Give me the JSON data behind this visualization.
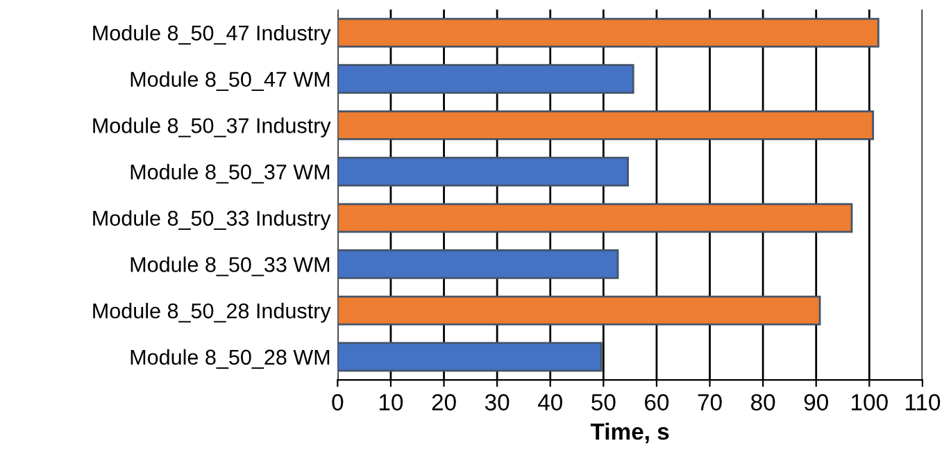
{
  "chart_data": {
    "type": "bar",
    "orientation": "horizontal",
    "xlabel": "Time, s",
    "categories": [
      "Module 8_50_47 Industry",
      "Module 8_50_47 WM",
      "Module 8_50_37 Industry",
      "Module 8_50_37 WM",
      "Module 8_50_33 Industry",
      "Module 8_50_33 WM",
      "Module 8_50_28 Industry",
      "Module 8_50_28 WM"
    ],
    "values": [
      101.7,
      55.6,
      100.7,
      54.6,
      96.7,
      52.7,
      90.7,
      49.6
    ],
    "colors": [
      "#ed7d31",
      "#4472c4",
      "#ed7d31",
      "#4472c4",
      "#ed7d31",
      "#4472c4",
      "#ed7d31",
      "#4472c4"
    ],
    "xlim": [
      0,
      110
    ],
    "xticks": [
      0,
      10,
      20,
      30,
      40,
      50,
      60,
      70,
      80,
      90,
      100,
      110
    ],
    "grid": "x"
  }
}
